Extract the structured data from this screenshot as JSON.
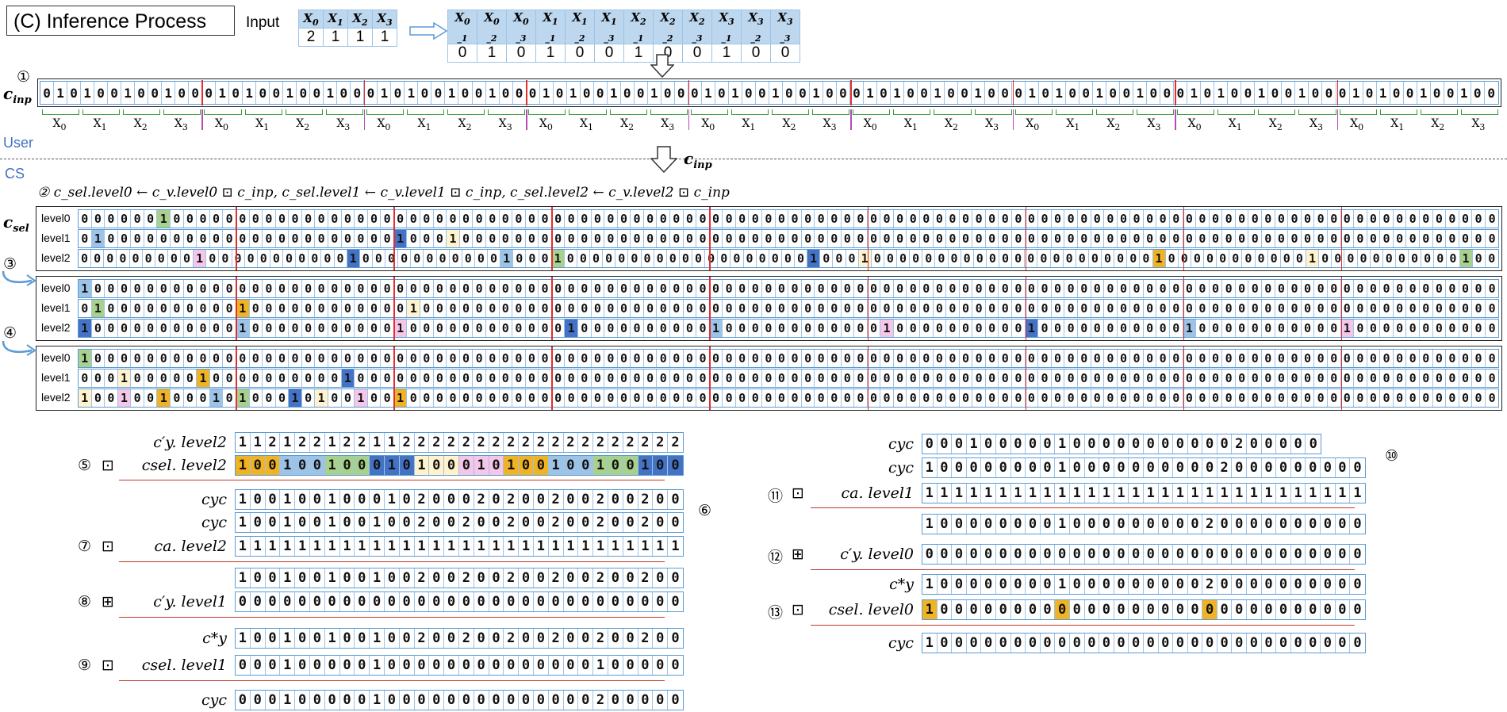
{
  "title": "(C) Inference Process",
  "input_label": "Input",
  "input_headers": [
    "X0",
    "X1",
    "X2",
    "X3"
  ],
  "input_values": [
    "2",
    "1",
    "1",
    "1"
  ],
  "expanded_headers": [
    "X0_1",
    "X0_2",
    "X0_3",
    "X1_1",
    "X1_2",
    "X1_3",
    "X2_1",
    "X2_2",
    "X2_3",
    "X3_1",
    "X3_2",
    "X3_3"
  ],
  "expanded_values": [
    "0",
    "1",
    "0",
    "1",
    "0",
    "0",
    "1",
    "0",
    "0",
    "1",
    "0",
    "0"
  ],
  "step1_marker": "①",
  "cinp_label": "c_inp",
  "cinp_bits": "010100100100010100100100010100100100010100100100010100100100010100100100010100100100010100100100010100100100",
  "x_group_labels": [
    "X0",
    "X1",
    "X2",
    "X3"
  ],
  "user_label": "User",
  "cs_label": "CS",
  "cinp_arrow_label": "c_inp",
  "step2_text": "② c_sel.level0 ← c_v.level0 ⊡ c_inp,  c_sel.level1 ← c_v.level1 ⊡ c_inp,  c_sel.level2 ← c_v.level2 ⊡ c_inp",
  "csel_label": "c_sel",
  "step3_marker": "③",
  "step4_marker": "④",
  "level_labels": [
    "level0",
    "level1",
    "level2"
  ],
  "block1": {
    "level0": "000000100000000000000000000000000000000000000000000000000000000000000000000000000000000000000000000000000000",
    "level1": "010000000000000000000000100010000000000000000000000000000000000000000000000000000000000000000000000000000000",
    "level2": "000000000100000000000100000000000100010000000000000000000100010000000000000000000000100000000000100000000000100"
  },
  "block2": {
    "level0": "100000000000000000000000000000000000000000000000000000000000000000000000000000000000000000000000000000000000",
    "level1": "010000000000100000000000010000000000000000000000000000000000000000000000000000000000000000000000000000000000",
    "level2": "100000000000100000000000100000000000010000000000100000000000010000000000100000000000100000000000100000000000"
  },
  "block3": {
    "level0": "100000000000000000000000000000000000000000000000000000000000000000000000000000000000000000000000000000000000",
    "level1": "000100000100000000001000000000000000000000000000000000000000000000000000000000000000000000000000000000000000",
    "level2": "100100100010100010100100100000000000000000000000000000000000000000000000000000000000000000000000000000000000"
  },
  "left_steps": {
    "s5_marker": "⑤",
    "cy_prime_level2_label": "c′y. level2",
    "cy_prime_level2_bits": "112122122112222222222222222222",
    "csel_level2_label": "csel. level2",
    "csel_level2_bits": "100100100010100010100100100100",
    "cyc_label": "cyc",
    "cyc1_bits": "100100100010200020200200200200",
    "s6_marker": "⑥",
    "cyc2_bits": "100100100100200200200200200200",
    "s7_marker": "⑦",
    "ca_level2_label": "ca. level2",
    "ca_level2_bits": "111111111111111111111111111111",
    "res7_bits": "100100100100200200200200200200",
    "s8_marker": "⑧",
    "cy_prime_level1_label": "c′y. level1",
    "cy_prime_level1_bits": "000000000000000000000000000000",
    "cy_star_label": "c*y",
    "cy_star_bits": "100100100100200200200200200200",
    "s9_marker": "⑨",
    "csel_level1_label": "csel. level1",
    "csel_level1_bits": "000100000100000000000000100000",
    "cyc3_bits": "000100000100000000000000200000"
  },
  "right_steps": {
    "cyc_label": "cyc",
    "cyc1_bits": "000100000100000000000200000",
    "s10_marker": "⑩",
    "cyc2_bits": "100000000100000000002000000000",
    "s11_marker": "⑪",
    "ca_level1_label": "ca. level1",
    "ca_level1_bits": "111111111111111111111111111111",
    "res11_bits": "100000000100000000020000000000",
    "s12_marker": "⑫",
    "cy_prime_level0_label": "c′y. level0",
    "cy_prime_level0_bits": "000000000000000000000000000000",
    "cy_star_label": "c*y",
    "cy_star_bits": "100000000100000000020000000000",
    "s13_marker": "⑬",
    "csel_level0_label": "csel. level0",
    "csel_level0_bits": "100000000000000000000000000000",
    "cyc3_bits": "100000000000000000000000000000"
  },
  "colors": {
    "orange": "#f0b323",
    "blue": "#9dc3e6",
    "green": "#a9d18e",
    "darkblue": "#4472c4",
    "yellow": "#fff2cc",
    "pink": "#f4c6e7",
    "red_divider": "#e03030",
    "label_blue": "#4472c4"
  },
  "operators": {
    "hadamard": "⊡",
    "add": "⊞"
  }
}
